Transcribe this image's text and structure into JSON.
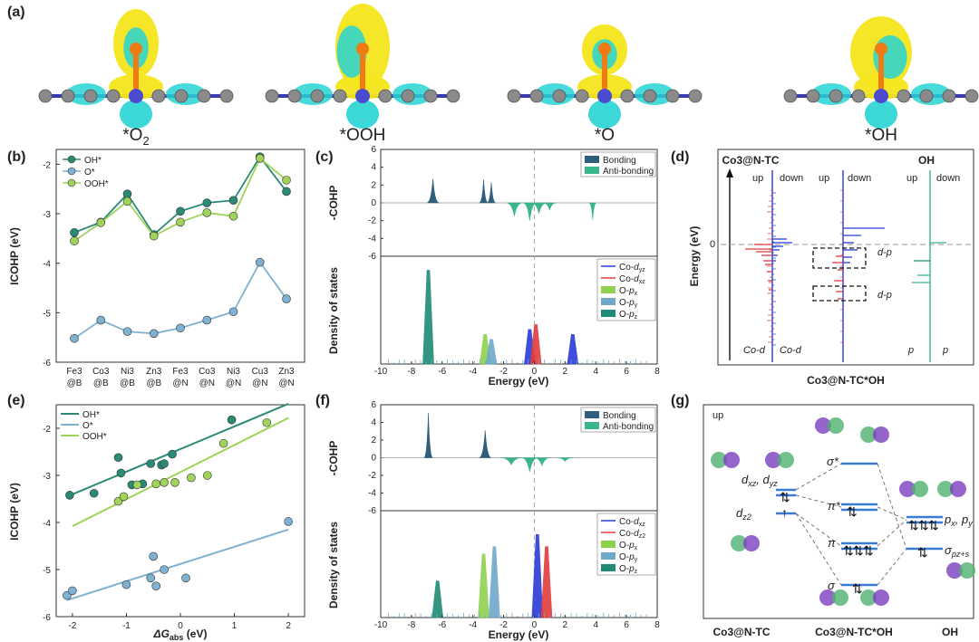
{
  "panel_labels": [
    "(a)",
    "(b)",
    "(c)",
    "(d)",
    "(e)",
    "(f)",
    "(g)"
  ],
  "panel_a": {
    "captions": [
      {
        "pre": "*O",
        "sub": "2"
      },
      {
        "pre": "*OOH",
        "sub": ""
      },
      {
        "pre": "*O",
        "sub": ""
      },
      {
        "pre": "*OH",
        "sub": ""
      }
    ],
    "colors": {
      "yellow": "#f4e61c",
      "cyan": "#27d3d3",
      "orange": "#f07a14",
      "atom": "#8a8a8a",
      "bond": "#3a3ab0"
    }
  },
  "chart_data": [
    {
      "id": "b",
      "type": "line",
      "title": "",
      "ylabel": "ICOHP (eV)",
      "xlabel": "",
      "ylim": [
        -6,
        -1.7
      ],
      "yticks": [
        "-2",
        "-3",
        "-4",
        "-5",
        "-6"
      ],
      "categories": [
        {
          "top": "Fe3",
          "bot": "@B"
        },
        {
          "top": "Co3",
          "bot": "@B"
        },
        {
          "top": "Ni3",
          "bot": "@B"
        },
        {
          "top": "Zn3",
          "bot": "@B"
        },
        {
          "top": "Fe3",
          "bot": "@N"
        },
        {
          "top": "Co3",
          "bot": "@N"
        },
        {
          "top": "Ni3",
          "bot": "@N"
        },
        {
          "top": "Cu3",
          "bot": "@N"
        },
        {
          "top": "Zn3",
          "bot": "@N"
        }
      ],
      "legend": [
        "OH*",
        "O*",
        "OOH*"
      ],
      "series": [
        {
          "name": "OH*",
          "color": "#2a8a76",
          "values": [
            -3.38,
            -3.17,
            -2.6,
            -3.42,
            -2.95,
            -2.78,
            -2.73,
            -1.85,
            -2.55
          ]
        },
        {
          "name": "O*",
          "color": "#7fb1d2",
          "values": [
            -5.52,
            -5.15,
            -5.38,
            -5.42,
            -5.31,
            -5.15,
            -4.98,
            -3.98,
            -4.72
          ]
        },
        {
          "name": "OOH*",
          "color": "#9fd35a",
          "values": [
            -3.55,
            -3.18,
            -2.75,
            -3.45,
            -3.17,
            -2.98,
            -3.05,
            -1.88,
            -2.32
          ]
        }
      ]
    },
    {
      "id": "c",
      "type": "area",
      "top": {
        "ylabel": "-COHP",
        "ylim": [
          -6,
          6
        ],
        "yticks": [
          "6",
          "4",
          "2",
          "0",
          "-2",
          "-4",
          "-6"
        ],
        "legend": [
          {
            "name": "Bonding",
            "color": "#2f5f7c"
          },
          {
            "name": "Anti-bonding",
            "color": "#3bb58a"
          }
        ],
        "bonding_peaks": [
          {
            "x": -6.6,
            "h": 2.7,
            "w": 0.22
          },
          {
            "x": -3.3,
            "h": 2.6,
            "w": 0.16
          },
          {
            "x": -2.8,
            "h": 2.3,
            "w": 0.16
          }
        ],
        "antibonding_peaks": [
          {
            "x": -1.3,
            "h": -1.5,
            "w": 0.3
          },
          {
            "x": -0.3,
            "h": -2.0,
            "w": 0.25
          },
          {
            "x": 0.3,
            "h": -1.2,
            "w": 0.3
          },
          {
            "x": 1.0,
            "h": -0.8,
            "w": 0.25
          },
          {
            "x": 3.8,
            "h": -1.9,
            "w": 0.14
          }
        ]
      },
      "bottom": {
        "ylabel": "Density of states",
        "xlim": [
          -10,
          8
        ],
        "xticks": [
          "-10",
          "-8",
          "-6",
          "-4",
          "-2",
          "0",
          "2",
          "4",
          "6",
          "8"
        ],
        "xlabel": "Energy (eV)",
        "legend": [
          {
            "pre": "Co-",
            "ital": "d",
            "sub": "yz",
            "color": "#2a3ad6",
            "kind": "line"
          },
          {
            "pre": "Co-",
            "ital": "d",
            "sub": "xz",
            "color": "#e23b3b",
            "kind": "line"
          },
          {
            "pre": "O-",
            "ital": "p",
            "sub": "x",
            "color": "#8fd14f",
            "kind": "box"
          },
          {
            "pre": "O-",
            "ital": "p",
            "sub": "y",
            "color": "#6fa8c9",
            "kind": "box"
          },
          {
            "pre": "O-",
            "ital": "p",
            "sub": "z",
            "color": "#1f8a76",
            "kind": "box"
          }
        ],
        "peaks": [
          {
            "x": -6.9,
            "h": 3.8,
            "color": "#1f8a76"
          },
          {
            "x": -3.2,
            "h": 1.2,
            "color": "#8fd14f"
          },
          {
            "x": -2.8,
            "h": 1.0,
            "color": "#6fa8c9"
          },
          {
            "x": -0.3,
            "h": 1.4,
            "color": "#2a3ad6"
          },
          {
            "x": 0.1,
            "h": 1.6,
            "color": "#e23b3b"
          },
          {
            "x": 2.5,
            "h": 1.2,
            "color": "#2a3ad6"
          }
        ]
      }
    },
    {
      "id": "d",
      "type": "line",
      "title_left": "Co3@N-TC",
      "title_right": "OH",
      "ylabel": "Energy (eV)",
      "zero_label": "0",
      "col_headers": [
        "up",
        "down",
        "up",
        "down",
        "up",
        "down"
      ],
      "bottom_labels": [
        {
          "ital": "Co-d",
          "color": "#e23b3b"
        },
        {
          "ital": "Co-d",
          "color": "#2a3ad6"
        },
        {
          "ital": "p",
          "color": "#1f8a76"
        },
        {
          "ital": "p",
          "color": "#3bb58a"
        }
      ],
      "box_labels": [
        "d-p",
        "d-p"
      ],
      "xlabel": "Co3@N-TC*OH"
    },
    {
      "id": "e",
      "type": "scatter",
      "ylabel": "ICOHP (eV)",
      "xlabel_pre": "ΔG",
      "xlabel_sub": "abs",
      "xlabel_post": " (eV)",
      "xlim": [
        -2.3,
        2.3
      ],
      "ylim": [
        -6,
        -1.5
      ],
      "xticks": [
        "-2",
        "-1",
        "0",
        "1",
        "2"
      ],
      "yticks": [
        "-2",
        "-3",
        "-4",
        "-5",
        "-6"
      ],
      "legend": [
        "OH*",
        "O*",
        "OOH*"
      ],
      "series": [
        {
          "name": "OH*",
          "color": "#2a8a76",
          "fit": [
            [
              -2.1,
              -3.45
            ],
            [
              2.0,
              -1.48
            ]
          ],
          "x": [
            -2.05,
            -1.6,
            -1.15,
            -1.1,
            -0.9,
            -0.7,
            -0.55,
            -0.35,
            -0.3,
            -0.15,
            0.95
          ],
          "y": [
            -3.42,
            -3.38,
            -2.62,
            -2.95,
            -3.2,
            -3.18,
            -2.75,
            -2.78,
            -2.75,
            -2.55,
            -1.82
          ]
        },
        {
          "name": "O*",
          "color": "#7fb1d2",
          "fit": [
            [
              -2.1,
              -5.65
            ],
            [
              2.0,
              -4.15
            ]
          ],
          "x": [
            -2.1,
            -2.0,
            -1.0,
            -0.55,
            -0.5,
            -0.45,
            -0.3,
            0.1,
            2.0
          ],
          "y": [
            -5.55,
            -5.45,
            -5.32,
            -5.18,
            -4.72,
            -5.35,
            -5.0,
            -5.18,
            -3.98
          ]
        },
        {
          "name": "OOH*",
          "color": "#9fd35a",
          "fit": [
            [
              -2.0,
              -4.08
            ],
            [
              2.0,
              -1.78
            ]
          ],
          "x": [
            -1.15,
            -1.05,
            -0.8,
            -0.45,
            -0.3,
            -0.1,
            0.2,
            0.5,
            0.8,
            1.6
          ],
          "y": [
            -3.55,
            -3.45,
            -3.2,
            -3.18,
            -3.15,
            -3.15,
            -3.05,
            -3.0,
            -2.32,
            -1.88
          ]
        }
      ]
    },
    {
      "id": "f",
      "type": "area",
      "top": {
        "ylabel": "-COHP",
        "ylim": [
          -6,
          6
        ],
        "yticks": [
          "6",
          "4",
          "2",
          "0",
          "-2",
          "-4",
          "-6"
        ],
        "legend": [
          {
            "name": "Bonding",
            "color": "#2f5f7c"
          },
          {
            "name": "Anti-bonding",
            "color": "#3bb58a"
          }
        ],
        "bonding_peaks": [
          {
            "x": -6.9,
            "h": 5.1,
            "w": 0.16
          },
          {
            "x": -3.2,
            "h": 3.1,
            "w": 0.22
          }
        ],
        "antibonding_peaks": [
          {
            "x": -1.5,
            "h": -0.8,
            "w": 0.4
          },
          {
            "x": -0.3,
            "h": -1.6,
            "w": 0.3
          },
          {
            "x": 0.5,
            "h": -0.9,
            "w": 0.3
          },
          {
            "x": 2.0,
            "h": -0.4,
            "w": 0.3
          }
        ]
      },
      "bottom": {
        "ylabel": "Density of states",
        "xlim": [
          -10,
          8
        ],
        "xticks": [
          "-10",
          "-8",
          "-6",
          "-4",
          "-2",
          "0",
          "2",
          "4",
          "6",
          "8"
        ],
        "xlabel": "Energy (eV)",
        "legend": [
          {
            "pre": "Co-",
            "ital": "d",
            "sub": "xz",
            "color": "#2a3ad6",
            "kind": "line"
          },
          {
            "pre": "Co-",
            "ital": "d",
            "sub": "z2",
            "color": "#e23b3b",
            "kind": "line"
          },
          {
            "pre": "O-",
            "ital": "p",
            "sub": "x",
            "color": "#8fd14f",
            "kind": "box"
          },
          {
            "pre": "O-",
            "ital": "p",
            "sub": "y",
            "color": "#6fa8c9",
            "kind": "box"
          },
          {
            "pre": "O-",
            "ital": "p",
            "sub": "z",
            "color": "#1f8a76",
            "kind": "box"
          }
        ],
        "peaks": [
          {
            "x": -6.3,
            "h": 1.5,
            "color": "#1f8a76"
          },
          {
            "x": -3.3,
            "h": 2.6,
            "color": "#8fd14f"
          },
          {
            "x": -2.6,
            "h": 2.9,
            "color": "#6fa8c9"
          },
          {
            "x": 0.2,
            "h": 3.4,
            "color": "#2a3ad6"
          },
          {
            "x": 0.8,
            "h": 2.9,
            "color": "#e23b3b"
          }
        ]
      }
    }
  ],
  "panel_g": {
    "up_label": "up",
    "left_levels": [
      {
        "pre": "d",
        "sub": "xz",
        "mid": ", d",
        "sub2": "yz"
      },
      {
        "pre": "d",
        "sub": "z2"
      }
    ],
    "mid_levels": [
      "σ*",
      "π*",
      "π",
      "σ"
    ],
    "right_levels": [
      {
        "pre": "p",
        "sub": "x",
        "mid": ", p",
        "sub2": "y"
      },
      {
        "pre": "σ",
        "sub": "pz+s"
      }
    ],
    "bottom_labels": [
      "Co3@N-TC",
      "Co3@N-TC*OH",
      "OH"
    ]
  }
}
